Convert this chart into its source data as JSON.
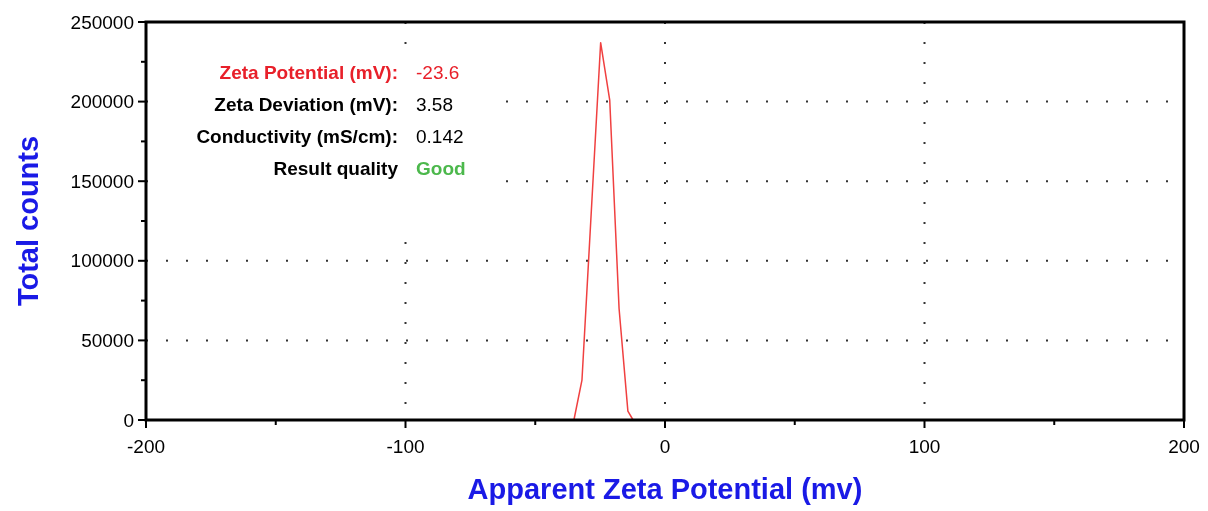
{
  "chart_data": {
    "type": "line",
    "xlabel": "Apparent Zeta Potential (mv)",
    "ylabel": "Total counts",
    "x": [
      -35.1,
      -32.0,
      -24.8,
      -21.3,
      -17.7,
      -14.3,
      -12.3
    ],
    "series": [
      {
        "color": "#f04040",
        "values": [
          0,
          25000,
          237000,
          201000,
          70000,
          5600,
          0
        ]
      }
    ],
    "xlim": [
      -200,
      200
    ],
    "xticks": [
      -200,
      {
        "value": -150,
        "label": null
      },
      -100,
      {
        "value": -50,
        "label": null
      },
      0,
      {
        "value": 50,
        "label": null
      },
      100,
      {
        "value": 150,
        "label": null
      },
      200
    ],
    "ylim": [
      0,
      250000
    ],
    "yticks": [
      0,
      {
        "value": 25000,
        "label": null
      },
      50000,
      {
        "value": 75000,
        "label": null
      },
      100000,
      {
        "value": 125000,
        "label": null
      },
      150000,
      {
        "value": 175000,
        "label": null
      },
      200000,
      {
        "value": 225000,
        "label": null
      },
      250000
    ],
    "grid": true,
    "marker": "none",
    "line_style": "solid",
    "annotations": [
      "Zeta Potential (mV):",
      "-23.6",
      "Zeta Deviation (mV):",
      "3.58",
      "Conductivity (mS/cm):",
      "0.142",
      "Result quality",
      "Good"
    ]
  }
}
